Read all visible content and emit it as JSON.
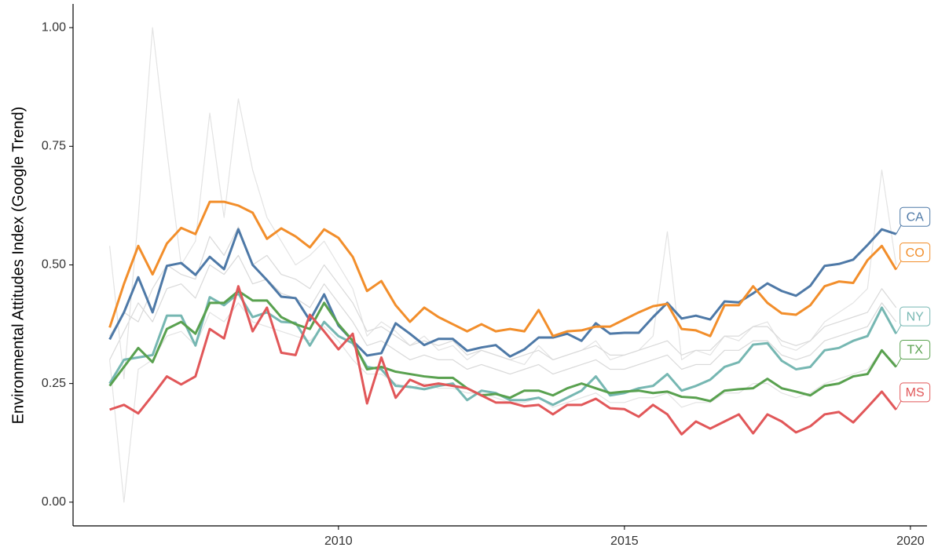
{
  "chart_data": {
    "type": "line",
    "y_label": "Environmental Attitudes Index (Google Trend)",
    "x": [
      2006,
      2006.25,
      2006.5,
      2006.75,
      2007,
      2007.25,
      2007.5,
      2007.75,
      2008,
      2008.25,
      2008.5,
      2008.75,
      2009,
      2009.25,
      2009.5,
      2009.75,
      2010,
      2010.25,
      2010.5,
      2010.75,
      2011,
      2011.25,
      2011.5,
      2011.75,
      2012,
      2012.25,
      2012.5,
      2012.75,
      2013,
      2013.25,
      2013.5,
      2013.75,
      2014,
      2014.25,
      2014.5,
      2014.75,
      2015,
      2015.25,
      2015.5,
      2015.75,
      2016,
      2016.25,
      2016.5,
      2016.75,
      2017,
      2017.25,
      2017.5,
      2017.75,
      2018,
      2018.25,
      2018.5,
      2018.75,
      2019,
      2019.25,
      2019.5,
      2019.75
    ],
    "xlim": [
      2005.36,
      2020.29
    ],
    "xticks": [
      2010,
      2015,
      2020
    ],
    "ylim": [
      -0.05,
      1.05
    ],
    "yticks": [
      {
        "value": 0,
        "label": "0.00"
      },
      {
        "value": 0.25,
        "label": "0.25"
      },
      {
        "value": 0.5,
        "label": "0.50"
      },
      {
        "value": 0.75,
        "label": "0.75"
      },
      {
        "value": 1,
        "label": "1.00"
      }
    ],
    "series": [
      {
        "color": "#d9d9d9",
        "values": [
          0.3,
          0.36,
          0.42,
          0.38,
          0.45,
          0.46,
          0.43,
          0.5,
          0.48,
          0.52,
          0.46,
          0.47,
          0.44,
          0.43,
          0.41,
          0.46,
          0.42,
          0.38,
          0.33,
          0.34,
          0.32,
          0.3,
          0.31,
          0.3,
          0.3,
          0.28,
          0.29,
          0.28,
          0.27,
          0.28,
          0.29,
          0.27,
          0.28,
          0.29,
          0.3,
          0.28,
          0.28,
          0.29,
          0.3,
          0.31,
          0.28,
          0.29,
          0.29,
          0.32,
          0.32,
          0.34,
          0.34,
          0.31,
          0.3,
          0.31,
          0.34,
          0.35,
          0.36,
          0.37,
          0.42,
          0.38
        ]
      },
      {
        "color": "#e3e3e3",
        "values": [
          0.54,
          0.26,
          0.6,
          1.0,
          0.74,
          0.5,
          0.55,
          0.82,
          0.6,
          0.85,
          0.7,
          0.6,
          0.55,
          0.5,
          0.52,
          0.55,
          0.5,
          0.45,
          0.35,
          0.38,
          0.36,
          0.33,
          0.35,
          0.32,
          0.33,
          0.3,
          0.32,
          0.31,
          0.3,
          0.29,
          0.33,
          0.3,
          0.31,
          0.32,
          0.34,
          0.3,
          0.31,
          0.32,
          0.35,
          0.57,
          0.3,
          0.32,
          0.31,
          0.35,
          0.34,
          0.37,
          0.38,
          0.33,
          0.32,
          0.34,
          0.38,
          0.4,
          0.42,
          0.45,
          0.7,
          0.5
        ]
      },
      {
        "color": "#e3e3e3",
        "values": [
          0.3,
          0.0,
          0.28,
          0.3,
          0.35,
          0.36,
          0.33,
          0.4,
          0.38,
          0.42,
          0.38,
          0.37,
          0.36,
          0.35,
          0.34,
          0.37,
          0.34,
          0.3,
          0.27,
          0.27,
          0.25,
          0.24,
          0.25,
          0.24,
          0.24,
          0.23,
          0.23,
          0.22,
          0.21,
          0.21,
          0.22,
          0.2,
          0.21,
          0.22,
          0.23,
          0.21,
          0.21,
          0.22,
          0.22,
          0.23,
          0.2,
          0.21,
          0.21,
          0.23,
          0.23,
          0.25,
          0.25,
          0.23,
          0.22,
          0.23,
          0.25,
          0.26,
          0.27,
          0.28,
          0.32,
          0.29
        ]
      },
      {
        "color": "#d9d9d9",
        "values": [
          0.35,
          0.4,
          0.38,
          0.45,
          0.5,
          0.48,
          0.47,
          0.56,
          0.52,
          0.58,
          0.5,
          0.52,
          0.48,
          0.47,
          0.45,
          0.5,
          0.46,
          0.42,
          0.36,
          0.37,
          0.35,
          0.33,
          0.34,
          0.33,
          0.34,
          0.31,
          0.32,
          0.31,
          0.3,
          0.31,
          0.32,
          0.3,
          0.31,
          0.32,
          0.33,
          0.31,
          0.31,
          0.32,
          0.33,
          0.34,
          0.31,
          0.32,
          0.32,
          0.35,
          0.35,
          0.37,
          0.37,
          0.34,
          0.33,
          0.34,
          0.37,
          0.38,
          0.39,
          0.4,
          0.45,
          0.41
        ]
      },
      {
        "name": "CA",
        "color": "#4e79a7",
        "values": [
          0.343,
          0.4,
          0.474,
          0.4,
          0.498,
          0.504,
          0.479,
          0.517,
          0.491,
          0.575,
          0.5,
          0.468,
          0.433,
          0.43,
          0.383,
          0.438,
          0.372,
          0.34,
          0.309,
          0.314,
          0.377,
          0.355,
          0.331,
          0.344,
          0.344,
          0.319,
          0.326,
          0.331,
          0.307,
          0.322,
          0.347,
          0.347,
          0.355,
          0.34,
          0.377,
          0.355,
          0.357,
          0.357,
          0.39,
          0.42,
          0.387,
          0.393,
          0.385,
          0.423,
          0.421,
          0.44,
          0.461,
          0.445,
          0.435,
          0.456,
          0.498,
          0.502,
          0.511,
          0.542,
          0.575,
          0.565
        ]
      },
      {
        "name": "CO",
        "color": "#f28e2b",
        "values": [
          0.368,
          0.46,
          0.54,
          0.48,
          0.545,
          0.578,
          0.565,
          0.633,
          0.633,
          0.625,
          0.61,
          0.555,
          0.577,
          0.56,
          0.537,
          0.575,
          0.557,
          0.517,
          0.445,
          0.466,
          0.415,
          0.38,
          0.41,
          0.39,
          0.375,
          0.36,
          0.375,
          0.36,
          0.365,
          0.36,
          0.405,
          0.35,
          0.36,
          0.362,
          0.37,
          0.37,
          0.385,
          0.4,
          0.413,
          0.418,
          0.365,
          0.362,
          0.35,
          0.415,
          0.415,
          0.455,
          0.42,
          0.398,
          0.395,
          0.415,
          0.455,
          0.465,
          0.462,
          0.51,
          0.54,
          0.49
        ]
      },
      {
        "name": "NY",
        "color": "#76b7b2",
        "values": [
          0.25,
          0.3,
          0.305,
          0.31,
          0.393,
          0.393,
          0.33,
          0.432,
          0.415,
          0.44,
          0.39,
          0.4,
          0.38,
          0.378,
          0.33,
          0.38,
          0.35,
          0.335,
          0.285,
          0.28,
          0.245,
          0.243,
          0.238,
          0.245,
          0.25,
          0.215,
          0.235,
          0.23,
          0.215,
          0.215,
          0.22,
          0.205,
          0.22,
          0.235,
          0.265,
          0.225,
          0.23,
          0.24,
          0.245,
          0.27,
          0.235,
          0.245,
          0.258,
          0.285,
          0.295,
          0.332,
          0.335,
          0.298,
          0.28,
          0.285,
          0.32,
          0.325,
          0.34,
          0.35,
          0.41,
          0.355
        ]
      },
      {
        "name": "TX",
        "color": "#59a14f",
        "values": [
          0.245,
          0.285,
          0.325,
          0.295,
          0.365,
          0.38,
          0.355,
          0.42,
          0.42,
          0.445,
          0.425,
          0.425,
          0.39,
          0.375,
          0.365,
          0.42,
          0.375,
          0.34,
          0.28,
          0.285,
          0.275,
          0.27,
          0.265,
          0.262,
          0.262,
          0.24,
          0.225,
          0.228,
          0.22,
          0.235,
          0.235,
          0.225,
          0.24,
          0.25,
          0.24,
          0.23,
          0.233,
          0.235,
          0.23,
          0.233,
          0.222,
          0.22,
          0.213,
          0.235,
          0.238,
          0.24,
          0.26,
          0.24,
          0.233,
          0.225,
          0.245,
          0.25,
          0.265,
          0.27,
          0.32,
          0.285
        ]
      },
      {
        "name": "MS",
        "color": "#e15759",
        "values": [
          0.195,
          0.205,
          0.187,
          0.225,
          0.265,
          0.248,
          0.265,
          0.365,
          0.345,
          0.455,
          0.36,
          0.41,
          0.315,
          0.31,
          0.395,
          0.36,
          0.322,
          0.355,
          0.208,
          0.305,
          0.22,
          0.258,
          0.245,
          0.25,
          0.245,
          0.24,
          0.225,
          0.21,
          0.21,
          0.202,
          0.205,
          0.185,
          0.205,
          0.205,
          0.218,
          0.198,
          0.196,
          0.18,
          0.205,
          0.185,
          0.143,
          0.17,
          0.155,
          0.17,
          0.185,
          0.145,
          0.185,
          0.17,
          0.147,
          0.16,
          0.185,
          0.19,
          0.168,
          0.2,
          0.233,
          0.195
        ]
      }
    ]
  }
}
